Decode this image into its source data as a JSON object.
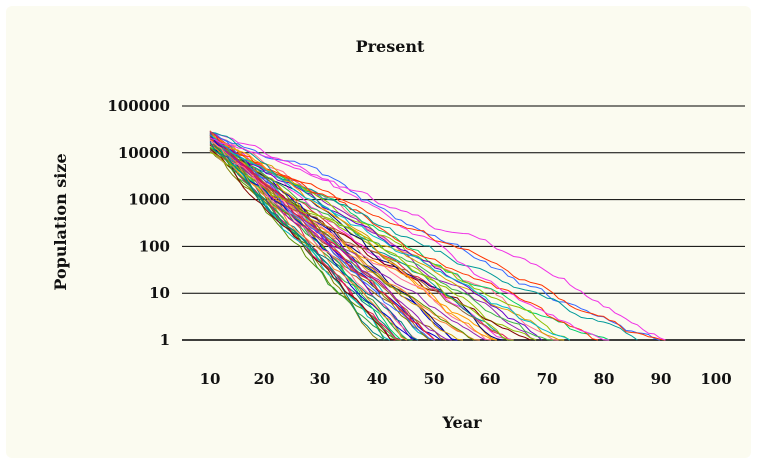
{
  "chart_data": {
    "type": "line",
    "title": "Present",
    "xlabel": "Year",
    "ylabel": "Population size",
    "x_ticks": [
      "10",
      "20",
      "30",
      "40",
      "50",
      "60",
      "70",
      "80",
      "90",
      "100"
    ],
    "y_ticks": [
      "1",
      "10",
      "100",
      "1000",
      "10000",
      "100000"
    ],
    "xlim": [
      10,
      100
    ],
    "ylim": [
      1,
      100000
    ],
    "y_scale": "log",
    "grid": "horizontal",
    "legend": "none",
    "series_count": 60,
    "start_year": 10,
    "start_population_range": [
      10000,
      30000
    ],
    "colors": [
      "#e6194b",
      "#3cb44b",
      "#0000cc",
      "#f58231",
      "#911eb4",
      "#00b8c8",
      "#f032e6",
      "#8fbf00",
      "#ff6f91",
      "#008080",
      "#9a6324",
      "#800000",
      "#5a8f00",
      "#808000",
      "#000075",
      "#d4a000",
      "#00cc66",
      "#cc0066",
      "#3366ff",
      "#ff3300",
      "#6600cc",
      "#009999",
      "#996633",
      "#339933",
      "#ff9900"
    ],
    "series": []
  }
}
